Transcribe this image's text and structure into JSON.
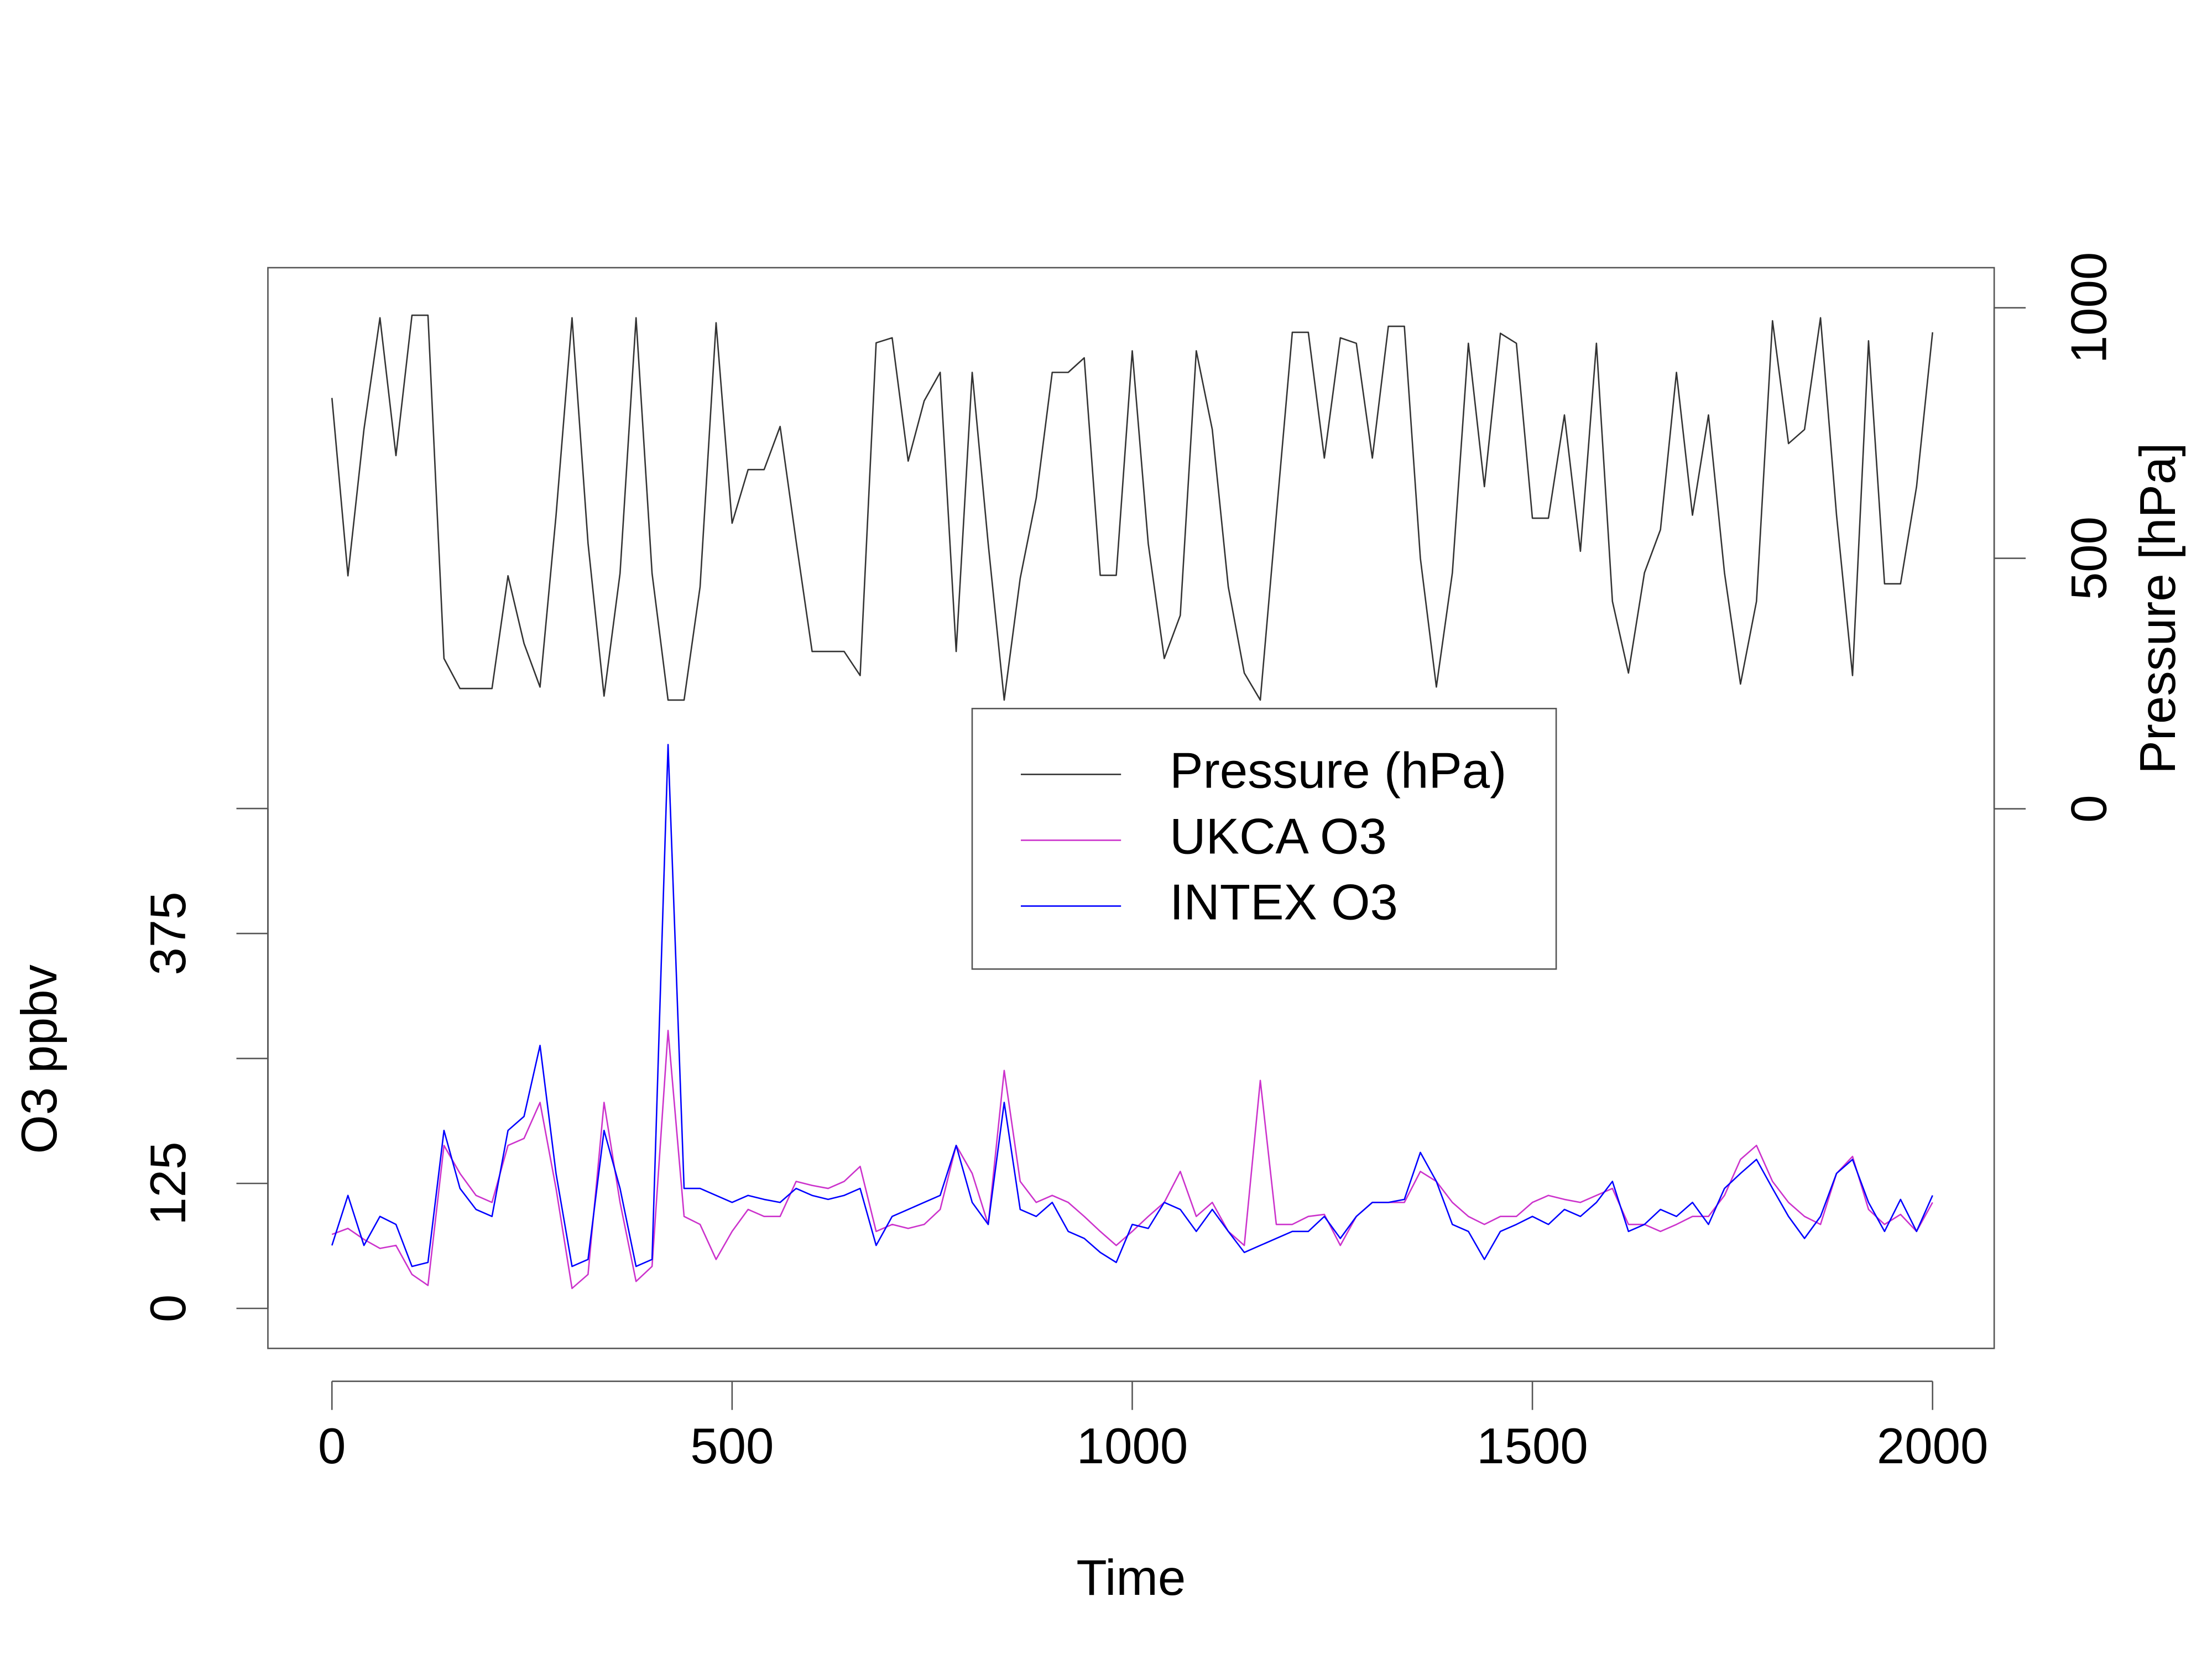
{
  "chart_data": {
    "type": "line",
    "xlabel": "Time",
    "ylabel": "O3 ppbv",
    "y2label": "Pressure [hPa]",
    "x": [
      0,
      20,
      40,
      60,
      80,
      100,
      120,
      140,
      160,
      180,
      200,
      220,
      240,
      260,
      280,
      300,
      320,
      340,
      360,
      380,
      400,
      420,
      440,
      460,
      480,
      500,
      520,
      540,
      560,
      580,
      600,
      620,
      640,
      660,
      680,
      700,
      720,
      740,
      760,
      780,
      800,
      820,
      840,
      860,
      880,
      900,
      920,
      940,
      960,
      980,
      1000,
      1020,
      1040,
      1060,
      1080,
      1100,
      1120,
      1140,
      1160,
      1180,
      1200,
      1220,
      1240,
      1260,
      1280,
      1300,
      1320,
      1340,
      1360,
      1380,
      1400,
      1420,
      1440,
      1460,
      1480,
      1500,
      1520,
      1540,
      1560,
      1580,
      1600,
      1620,
      1640,
      1660,
      1680,
      1700,
      1720,
      1740,
      1760,
      1780,
      1800,
      1820,
      1840,
      1860,
      1880,
      1900,
      1920,
      1940,
      1960,
      1980,
      2000
    ],
    "xlim": [
      -80,
      2077
    ],
    "xticks": [
      0,
      500,
      1000,
      1500,
      2000
    ],
    "ylim": [
      -40,
      1041
    ],
    "yticks": [
      0,
      125,
      {
        "value": 250,
        "label": null
      },
      375,
      {
        "value": 500,
        "label": null
      }
    ],
    "y2lim": [
      -1077,
      1080
    ],
    "y2ticks": [
      0,
      500,
      1000
    ],
    "legend": "center",
    "series": [
      {
        "name": "Pressure (hPa)",
        "color": "#333333",
        "axis": "y2",
        "values": [
          820,
          465,
          757,
          980,
          705,
          985,
          985,
          300,
          240,
          240,
          240,
          465,
          330,
          243,
          585,
          980,
          530,
          225,
          470,
          980,
          470,
          217,
          217,
          443,
          970,
          570,
          677,
          677,
          763,
          534,
          314,
          314,
          314,
          266,
          930,
          940,
          694,
          814,
          871,
          314,
          871,
          529,
          217,
          460,
          620,
          871,
          871,
          900,
          466,
          466,
          914,
          529,
          300,
          386,
          914,
          757,
          443,
          271,
          217,
          586,
          951,
          951,
          700,
          940,
          929,
          700,
          963,
          963,
          500,
          243,
          471,
          929,
          643,
          949,
          929,
          580,
          580,
          786,
          514,
          929,
          414,
          271,
          471,
          557,
          871,
          586,
          786,
          471,
          249,
          414,
          974,
          729,
          757,
          980,
          586,
          266,
          934,
          449,
          449,
          643,
          951
        ]
      },
      {
        "name": "UKCA O3",
        "color": "#cc33cc",
        "values": [
          74,
          80,
          69,
          60,
          63,
          34,
          23,
          163,
          135,
          113,
          106,
          163,
          170,
          206,
          120,
          20,
          34,
          206,
          106,
          27,
          42,
          278,
          92,
          84,
          49,
          77,
          99,
          92,
          92,
          127,
          123,
          120,
          127,
          142,
          77,
          84,
          80,
          84,
          99,
          163,
          135,
          84,
          238,
          127,
          106,
          113,
          106,
          92,
          77,
          63,
          77,
          92,
          106,
          137,
          92,
          106,
          77,
          63,
          228,
          84,
          84,
          92,
          94,
          63,
          92,
          106,
          106,
          106,
          137,
          127,
          106,
          92,
          84,
          92,
          92,
          106,
          113,
          109,
          106,
          113,
          120,
          84,
          84,
          77,
          84,
          92,
          92,
          113,
          149,
          163,
          127,
          106,
          92,
          84,
          135,
          152,
          99,
          84,
          94,
          77,
          106
        ]
      },
      {
        "name": "INTEX O3",
        "color": "#0000ff",
        "values": [
          63,
          113,
          63,
          92,
          84,
          42,
          46,
          178,
          120,
          99,
          92,
          178,
          192,
          263,
          135,
          42,
          49,
          178,
          120,
          42,
          49,
          564,
          120,
          120,
          113,
          106,
          113,
          109,
          106,
          120,
          113,
          109,
          113,
          120,
          63,
          92,
          99,
          106,
          113,
          163,
          106,
          84,
          206,
          99,
          92,
          106,
          77,
          70,
          56,
          46,
          84,
          80,
          106,
          99,
          77,
          99,
          77,
          56,
          63,
          70,
          77,
          77,
          92,
          70,
          92,
          106,
          106,
          109,
          156,
          127,
          84,
          77,
          49,
          77,
          84,
          92,
          84,
          99,
          92,
          106,
          127,
          77,
          84,
          99,
          92,
          106,
          84,
          120,
          135,
          149,
          120,
          92,
          70,
          92,
          135,
          149,
          106,
          77,
          109,
          77,
          113
        ]
      }
    ]
  }
}
